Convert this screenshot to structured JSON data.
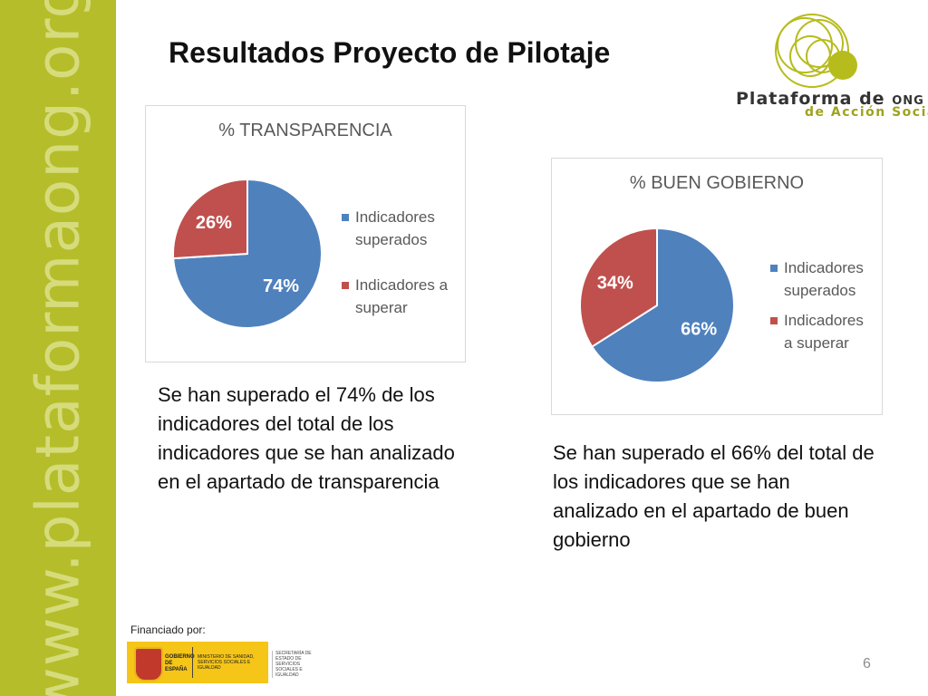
{
  "sidebar": {
    "url": "www.plataformaong.org"
  },
  "title": "Resultados Proyecto de Pilotaje",
  "logo": {
    "line1": "Plataforma de ",
    "line1_small": "ONG",
    "line2": "de Acción Social"
  },
  "colors": {
    "sidebar": "#b5bd2a",
    "blue": "#4f81bd",
    "red": "#c0504d",
    "logo_green": "#b7bc1d"
  },
  "chart_data": [
    {
      "type": "pie",
      "title": "% TRANSPARENCIA",
      "categories": [
        "Indicadores superados",
        "Indicadores a superar"
      ],
      "values": [
        74,
        26
      ],
      "labels": [
        "74%",
        "26%"
      ],
      "legend_placement": "right"
    },
    {
      "type": "pie",
      "title": "% BUEN GOBIERNO",
      "categories": [
        "Indicadores superados",
        "Indicadores a superar"
      ],
      "values": [
        66,
        34
      ],
      "labels": [
        "66%",
        "34%"
      ],
      "legend_placement": "right"
    }
  ],
  "captions": {
    "left": "Se han superado el 74% de los indicadores del total de los indicadores que se han analizado en el apartado de transparencia",
    "right": "Se han superado el 66% del total de los indicadores que se han analizado en el apartado de buen gobierno"
  },
  "footer": {
    "financiado": "Financiado por:",
    "gobierno": "GOBIERNO DE ESPAÑA",
    "ministerio": "MINISTERIO DE SANIDAD, SERVICIOS SOCIALES E IGUALDAD",
    "secretaria": "SECRETARÍA DE ESTADO DE SERVICIOS SOCIALES E IGUALDAD"
  },
  "page_number": "6"
}
